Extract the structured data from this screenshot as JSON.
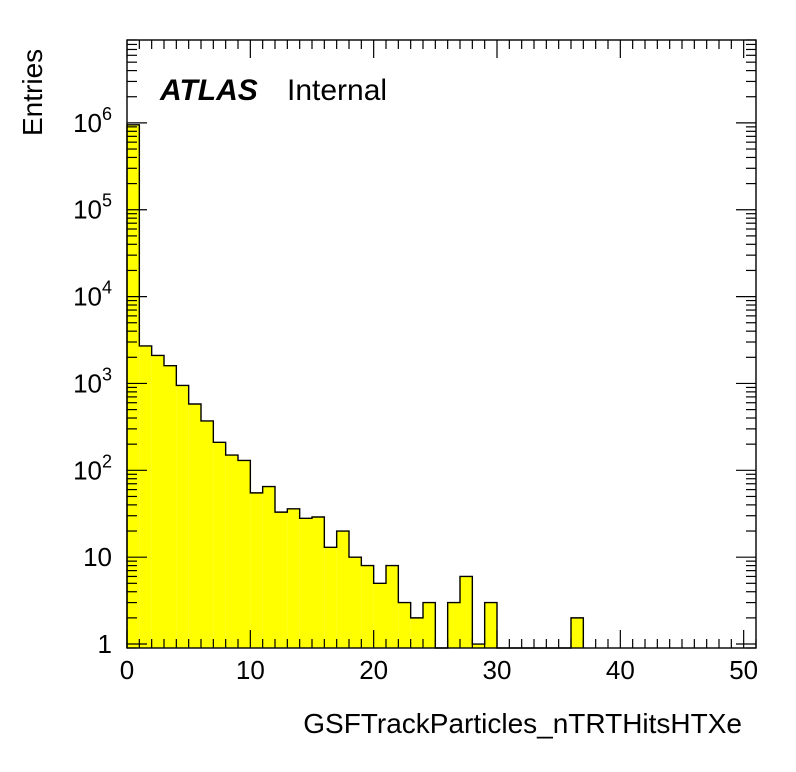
{
  "chart_data": {
    "type": "bar",
    "style": "histogram",
    "fill_color": "#ffff00",
    "line_color": "#000000",
    "xlabel": "GSFTrackParticles_nTRTHitsHTXe",
    "ylabel": "Entries",
    "label_bold": "ATLAS",
    "label_text": "Internal",
    "xlim": [
      0,
      51
    ],
    "ylim": [
      0.9,
      9000000
    ],
    "yscale": "log",
    "grid": false,
    "x_ticks": [
      "0",
      "10",
      "20",
      "30",
      "40",
      "50"
    ],
    "y_ticks": [
      {
        "value": 1,
        "base": "1",
        "exp": ""
      },
      {
        "value": 10,
        "base": "10",
        "exp": ""
      },
      {
        "value": 100,
        "base": "10",
        "exp": "2"
      },
      {
        "value": 1000,
        "base": "10",
        "exp": "3"
      },
      {
        "value": 10000,
        "base": "10",
        "exp": "4"
      },
      {
        "value": 100000,
        "base": "10",
        "exp": "5"
      },
      {
        "value": 1000000,
        "base": "10",
        "exp": "6"
      }
    ],
    "bin_width": 1,
    "values": [
      950000,
      2700,
      2100,
      1600,
      950,
      580,
      370,
      210,
      150,
      130,
      55,
      65,
      33,
      36,
      28,
      29,
      13,
      20,
      10,
      8,
      5,
      8,
      3,
      2,
      3,
      0,
      3,
      6,
      1,
      3,
      0,
      0,
      0,
      0,
      0,
      0,
      2,
      0,
      0,
      0,
      0,
      0,
      0,
      0,
      0,
      0,
      0,
      0,
      0,
      0,
      0
    ]
  }
}
